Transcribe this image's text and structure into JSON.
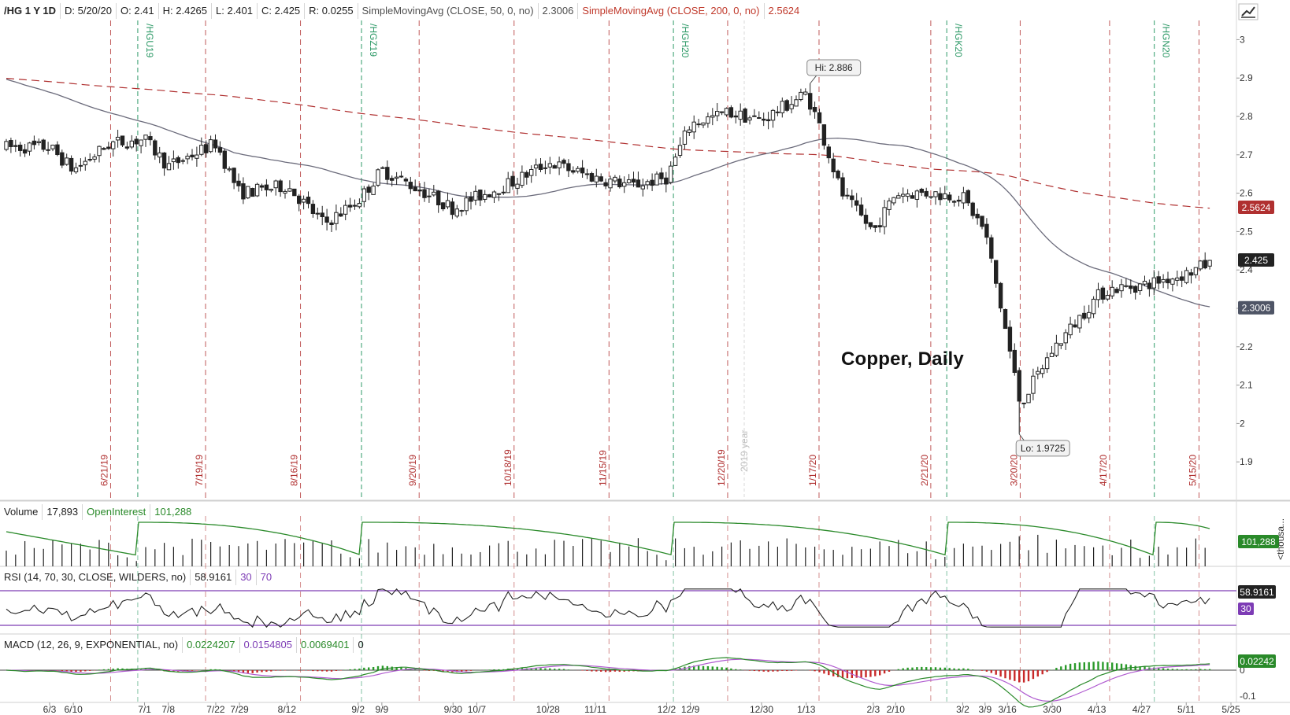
{
  "header": {
    "symbol": "/HG 1 Y 1D",
    "date": "D: 5/20/20",
    "open": "O: 2.41",
    "high": "H: 2.4265",
    "low": "L: 2.401",
    "close": "C: 2.425",
    "range": "R: 0.0255",
    "sma50_label": "SimpleMovingAvg (CLOSE, 50, 0, no)",
    "sma50_value": "2.3006",
    "sma200_label": "SimpleMovingAvg (CLOSE, 200, 0, no)",
    "sma200_value": "2.5624"
  },
  "chart_title": "Copper, Daily",
  "volume_header": {
    "label": "Volume",
    "value": "17,893",
    "oi_label": "OpenInterest",
    "oi_value": "101,288"
  },
  "rsi_header": {
    "label": "RSI (14, 70, 30, CLOSE, WILDERS, no)",
    "value": "58.9161",
    "low": "30",
    "high": "70"
  },
  "macd_header": {
    "label": "MACD (12, 26, 9, EXPONENTIAL, no)",
    "value": "0.0224207",
    "avg": "0.0154805",
    "diff": "0.0069401",
    "zero": "0"
  },
  "colors": {
    "candle": "#222222",
    "sma50": "#6b6b7b",
    "sma200": "#b03030",
    "expiry": "#2f9a68",
    "event": "#b03030",
    "volume": "#222222",
    "open_interest": "#2a8a2a",
    "rsi": "#222222",
    "rsi_bands": "#7d3cb5",
    "macd_value": "#2a8a2a",
    "macd_avg": "#b05bd0",
    "hist_pos": "#2a9a2a",
    "hist_neg": "#c82828"
  },
  "icons": {
    "tool": "drawing-tool-icon"
  },
  "chart_data": [
    {
      "type": "candlestick",
      "title": "Copper, Daily",
      "symbol": "/HG",
      "price_axis": {
        "ticks": [
          "3",
          "2.9",
          "2.8",
          "2.7",
          "2.6",
          "2.5",
          "2.4",
          "2.3",
          "2.2",
          "2.1",
          "2",
          "1.9"
        ],
        "range": [
          1.8,
          3.05
        ]
      },
      "x_ticks": [
        "6/3",
        "6/10",
        "7/1",
        "7/8",
        "7/22",
        "7/29",
        "8/12",
        "9/2",
        "9/9",
        "9/30",
        "10/7",
        "10/28",
        "11/11",
        "12/2",
        "12/9",
        "12/30",
        "1/13",
        "2/3",
        "2/10",
        "3/2",
        "3/9",
        "3/16",
        "3/30",
        "4/13",
        "4/27",
        "5/11",
        "5/25"
      ],
      "year_marker": "2019 year",
      "expiration_labels": [
        "/HGU19",
        "/HGZ19",
        "/HGH20",
        "/HGK20",
        "/HGN20"
      ],
      "event_dates": [
        "6/21/19",
        "7/19/19",
        "8/16/19",
        "9/20/19",
        "10/18/19",
        "11/15/19",
        "12/20/19",
        "1/17/20",
        "2/21/20",
        "3/20/20",
        "4/17/20",
        "5/15/20"
      ],
      "high_marker": "Hi: 2.886",
      "low_marker": "Lo: 1.9725",
      "last_ohlc": {
        "open": 2.41,
        "high": 2.4265,
        "low": 2.401,
        "close": 2.425
      },
      "sma50_last": "2.3006",
      "sma200_last": "2.5624",
      "last_price": "2.425",
      "close_path": [
        [
          "6/3",
          2.72
        ],
        [
          "6/10",
          2.66
        ],
        [
          "6/21",
          2.73
        ],
        [
          "7/1",
          2.74
        ],
        [
          "7/8",
          2.67
        ],
        [
          "7/22",
          2.73
        ],
        [
          "7/29",
          2.6
        ],
        [
          "8/12",
          2.62
        ],
        [
          "8/23",
          2.52
        ],
        [
          "9/2",
          2.58
        ],
        [
          "9/9",
          2.66
        ],
        [
          "9/20",
          2.61
        ],
        [
          "9/30",
          2.56
        ],
        [
          "10/7",
          2.59
        ],
        [
          "10/18",
          2.63
        ],
        [
          "10/28",
          2.68
        ],
        [
          "11/11",
          2.64
        ],
        [
          "11/22",
          2.62
        ],
        [
          "12/2",
          2.64
        ],
        [
          "12/9",
          2.78
        ],
        [
          "12/20",
          2.81
        ],
        [
          "12/30",
          2.79
        ],
        [
          "1/13",
          2.86
        ],
        [
          "1/17",
          2.78
        ],
        [
          "1/24",
          2.6
        ],
        [
          "2/3",
          2.5
        ],
        [
          "2/10",
          2.6
        ],
        [
          "2/21",
          2.6
        ],
        [
          "3/2",
          2.59
        ],
        [
          "3/9",
          2.5
        ],
        [
          "3/16",
          2.22
        ],
        [
          "3/20",
          2.05
        ],
        [
          "3/30",
          2.19
        ],
        [
          "4/13",
          2.33
        ],
        [
          "4/17",
          2.35
        ],
        [
          "4/27",
          2.36
        ],
        [
          "5/11",
          2.39
        ],
        [
          "5/20",
          2.425
        ]
      ]
    },
    {
      "type": "bar+line",
      "title": "Volume",
      "last_volume": "17,893",
      "open_interest_last": "101,288",
      "axis_unit": "<thousa..."
    },
    {
      "type": "line",
      "title": "RSI",
      "last": "58.9161",
      "bands": [
        "30",
        "70"
      ]
    },
    {
      "type": "line+histogram",
      "title": "MACD",
      "value": "0.0224207",
      "avg": "0.0154805",
      "diff": "0.0069401",
      "axis_ticks": [
        "0",
        "-0.1"
      ],
      "last_badge": "0.02242"
    }
  ]
}
